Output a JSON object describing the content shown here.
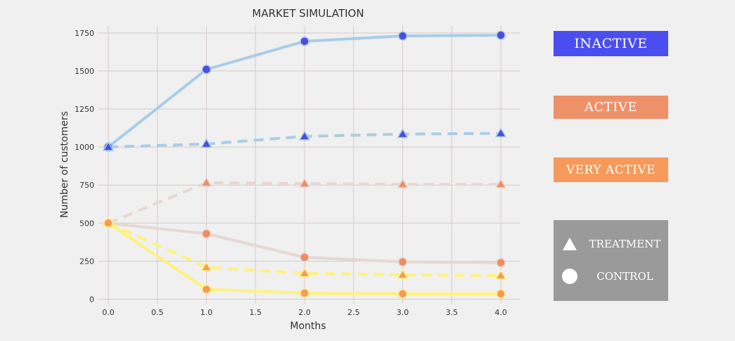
{
  "chart_data": {
    "type": "line",
    "title": "MARKET SIMULATION",
    "xlabel": "Months",
    "ylabel": "Number of customers",
    "xlim": [
      -0.1,
      4.2
    ],
    "ylim": [
      -30,
      1800
    ],
    "xticks": [
      "0.0",
      "0.5",
      "1.0",
      "1.5",
      "2.0",
      "2.5",
      "3.0",
      "3.5",
      "4.0"
    ],
    "yticks": [
      "0",
      "250",
      "500",
      "750",
      "1000",
      "1250",
      "1500",
      "1750"
    ],
    "grid": true,
    "x": [
      0,
      1,
      2,
      3,
      4
    ],
    "series": [
      {
        "group": "inactive",
        "arm": "control",
        "line_color": "#a8cde6",
        "marker_color": "#4a4ee0",
        "dashed": false,
        "values": [
          1000,
          1510,
          1695,
          1730,
          1735
        ]
      },
      {
        "group": "inactive",
        "arm": "treatment",
        "line_color": "#a8cde6",
        "marker_color": "#4a4ee0",
        "dashed": true,
        "values": [
          1000,
          1020,
          1070,
          1085,
          1090
        ]
      },
      {
        "group": "active",
        "arm": "treatment",
        "line_color": "#e5d8d4",
        "marker_color": "#ee8e62",
        "dashed": true,
        "values": [
          500,
          765,
          760,
          755,
          755
        ]
      },
      {
        "group": "active",
        "arm": "control",
        "line_color": "#e5d8d4",
        "marker_color": "#ee8e62",
        "dashed": false,
        "values": [
          500,
          430,
          275,
          245,
          240
        ]
      },
      {
        "group": "very_active",
        "arm": "treatment",
        "line_color": "#fff27a",
        "marker_color": "#f59a5a",
        "dashed": true,
        "values": [
          500,
          210,
          170,
          160,
          155
        ]
      },
      {
        "group": "very_active",
        "arm": "control",
        "line_color": "#fff27a",
        "marker_color": "#f59a5a",
        "dashed": false,
        "values": [
          500,
          65,
          40,
          35,
          35
        ]
      }
    ]
  },
  "legend": {
    "inactive": {
      "label": "INACTIVE",
      "color": "#4a4ef0"
    },
    "active": {
      "label": "ACTIVE",
      "color": "#ee9068"
    },
    "very_active": {
      "label": "VERY ACTIVE",
      "color": "#f59a5a"
    },
    "markers_bg": "#9a9a9a",
    "treatment_label": "TREATMENT",
    "control_label": "CONTROL"
  }
}
